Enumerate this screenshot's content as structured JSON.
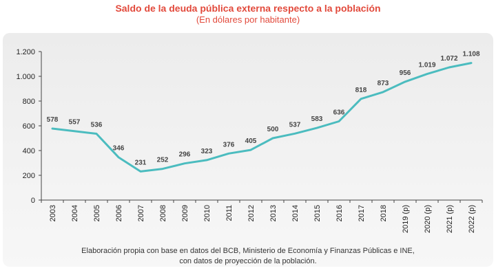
{
  "chart_data": {
    "type": "line",
    "title": "Saldo de la deuda pública externa respecto a la población",
    "subtitle": "(En dólares por habitante)",
    "categories": [
      "2003",
      "2004",
      "2005",
      "2006",
      "2007",
      "2008",
      "2009",
      "2010",
      "2011",
      "2012",
      "2013",
      "2014",
      "2015",
      "2016",
      "2017",
      "2018",
      "2019 (p)",
      "2020 (p)",
      "2021 (p)",
      "2022 (p)"
    ],
    "series": [
      {
        "values": [
          578,
          557,
          536,
          346,
          231,
          252,
          296,
          323,
          376,
          405,
          500,
          537,
          583,
          636,
          818,
          873,
          956,
          1019,
          1072,
          1108
        ],
        "labels": [
          "578",
          "557",
          "536",
          "346",
          "231",
          "252",
          "296",
          "323",
          "376",
          "405",
          "500",
          "537",
          "583",
          "636",
          "818",
          "873",
          "956",
          "1.019",
          "1.072",
          "1.108"
        ],
        "color": "#4bbcbf"
      }
    ],
    "ylim": [
      0,
      1200
    ],
    "yticks": [
      0,
      200,
      400,
      600,
      800,
      1000,
      1200
    ],
    "ytick_labels": [
      "0",
      "200",
      "400",
      "600",
      "800",
      "1.000",
      "1.200"
    ],
    "grid": false
  },
  "source": {
    "line1": "Elaboración propia con base en datos del BCB, Ministerio de Economía y Finanzas Públicas e INE,",
    "line2": "con datos de proyección de la población."
  }
}
